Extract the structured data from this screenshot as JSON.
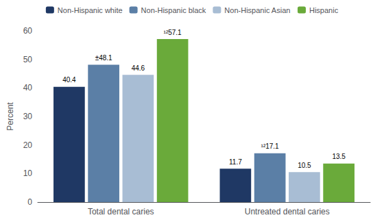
{
  "chart_data": {
    "type": "bar",
    "categories": [
      "Total dental caries",
      "Untreated dental caries"
    ],
    "series": [
      {
        "name": "Non-Hispanic white",
        "color": "#1f3864",
        "values": [
          40.4,
          11.7
        ],
        "value_labels": [
          "40.4",
          "11.7"
        ]
      },
      {
        "name": "Non-Hispanic black",
        "color": "#5b7fa6",
        "values": [
          48.1,
          17.1
        ],
        "value_labels": [
          "±48.1",
          "¹²17.1"
        ]
      },
      {
        "name": "Non-Hispanic Asian",
        "color": "#a8bdd4",
        "values": [
          44.6,
          10.5
        ],
        "value_labels": [
          "44.6",
          "10.5"
        ]
      },
      {
        "name": "Hispanic",
        "color": "#6aaa3a",
        "values": [
          57.1,
          13.5
        ],
        "value_labels": [
          "¹²57.1",
          "13.5"
        ]
      }
    ],
    "ylabel": "Percent",
    "ylim": [
      0,
      60
    ],
    "yticks": [
      0,
      10,
      20,
      30,
      40,
      50,
      60
    ],
    "grid": false,
    "legend": "top",
    "data_labels": true
  }
}
